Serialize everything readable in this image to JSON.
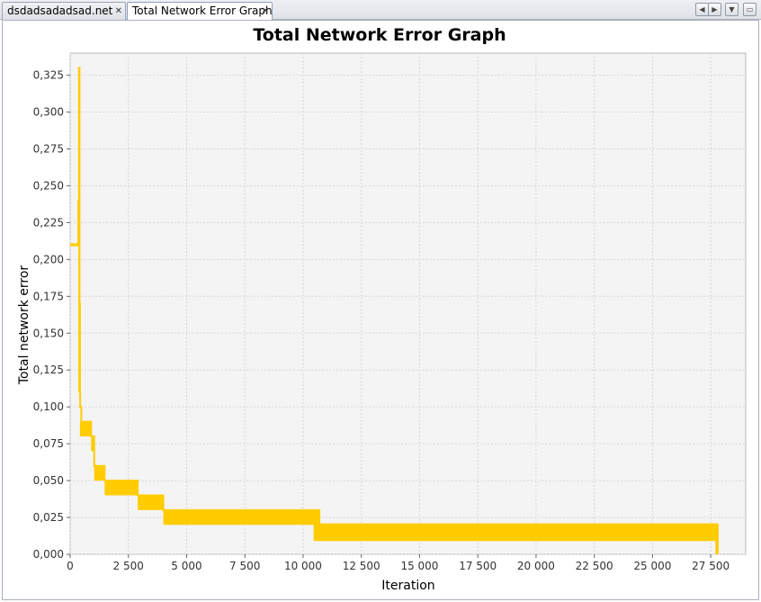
{
  "tabs": [
    {
      "label": "dsdadsadadsad.net",
      "active": false
    },
    {
      "label": "Total Network Error Graph",
      "active": true
    }
  ],
  "controls": {
    "scroll_left": "◀",
    "scroll_right": "▶",
    "dropdown": "▼",
    "maximize": "▭"
  },
  "colors": {
    "series": "#ffcc00",
    "plot_background": "#f4f4f4",
    "grid": "#d6d6d6"
  },
  "chart_data": {
    "type": "line",
    "title": "Total Network Error Graph",
    "xlabel": "Iteration",
    "ylabel": "Total network error",
    "xlim": [
      0,
      29000
    ],
    "ylim": [
      0,
      0.34
    ],
    "grid": true,
    "legend": "none",
    "x_ticks": [
      0,
      2500,
      5000,
      7500,
      10000,
      12500,
      15000,
      17500,
      20000,
      22500,
      25000,
      27500
    ],
    "x_tick_labels": [
      "0",
      "2 500",
      "5 000",
      "7 500",
      "10 000",
      "12 500",
      "15 000",
      "17 500",
      "20 000",
      "22 500",
      "25 000",
      "27 500"
    ],
    "y_ticks": [
      0,
      0.025,
      0.05,
      0.075,
      0.1,
      0.125,
      0.15,
      0.175,
      0.2,
      0.225,
      0.25,
      0.275,
      0.3,
      0.325
    ],
    "y_tick_labels": [
      "0,000",
      "0,025",
      "0,050",
      "0,075",
      "0,100",
      "0,125",
      "0,150",
      "0,175",
      "0,200",
      "0,225",
      "0,250",
      "0,275",
      "0,300",
      "0,325"
    ],
    "series": [
      {
        "color": "#ffcc00",
        "bands": [
          {
            "x0": 0,
            "x1": 350,
            "lo": 0.209,
            "hi": 0.211
          },
          {
            "x0": 350,
            "x1": 420,
            "lo": 0.11,
            "hi": 0.33
          },
          {
            "x0": 420,
            "x1": 900,
            "lo": 0.08,
            "hi": 0.09
          },
          {
            "x0": 900,
            "x1": 1030,
            "lo": 0.07,
            "hi": 0.08
          },
          {
            "x0": 1030,
            "x1": 1480,
            "lo": 0.05,
            "hi": 0.06
          },
          {
            "x0": 1480,
            "x1": 2900,
            "lo": 0.04,
            "hi": 0.05
          },
          {
            "x0": 2900,
            "x1": 4000,
            "lo": 0.03,
            "hi": 0.04
          },
          {
            "x0": 4000,
            "x1": 10700,
            "lo": 0.02,
            "hi": 0.03
          },
          {
            "x0": 10450,
            "x1": 27800,
            "lo": 0.009,
            "hi": 0.021
          },
          {
            "x0": 27700,
            "x1": 27800,
            "lo": 0.0,
            "hi": 0.021
          }
        ],
        "steps": [
          [
            0,
            0.21
          ],
          [
            350,
            0.21
          ],
          [
            350,
            0.24
          ],
          [
            380,
            0.24
          ],
          [
            380,
            0.33
          ],
          [
            400,
            0.33
          ],
          [
            400,
            0.17
          ],
          [
            420,
            0.17
          ],
          [
            420,
            0.11
          ],
          [
            430,
            0.11
          ],
          [
            430,
            0.1
          ],
          [
            480,
            0.1
          ],
          [
            480,
            0.09
          ],
          [
            900,
            0.09
          ],
          [
            900,
            0.08
          ],
          [
            1030,
            0.08
          ],
          [
            1030,
            0.06
          ],
          [
            1480,
            0.06
          ],
          [
            1480,
            0.05
          ],
          [
            2900,
            0.05
          ],
          [
            2900,
            0.04
          ],
          [
            4000,
            0.04
          ],
          [
            4000,
            0.03
          ],
          [
            10700,
            0.03
          ],
          [
            10700,
            0.02
          ],
          [
            27800,
            0.02
          ],
          [
            27800,
            0.0
          ]
        ]
      }
    ]
  }
}
